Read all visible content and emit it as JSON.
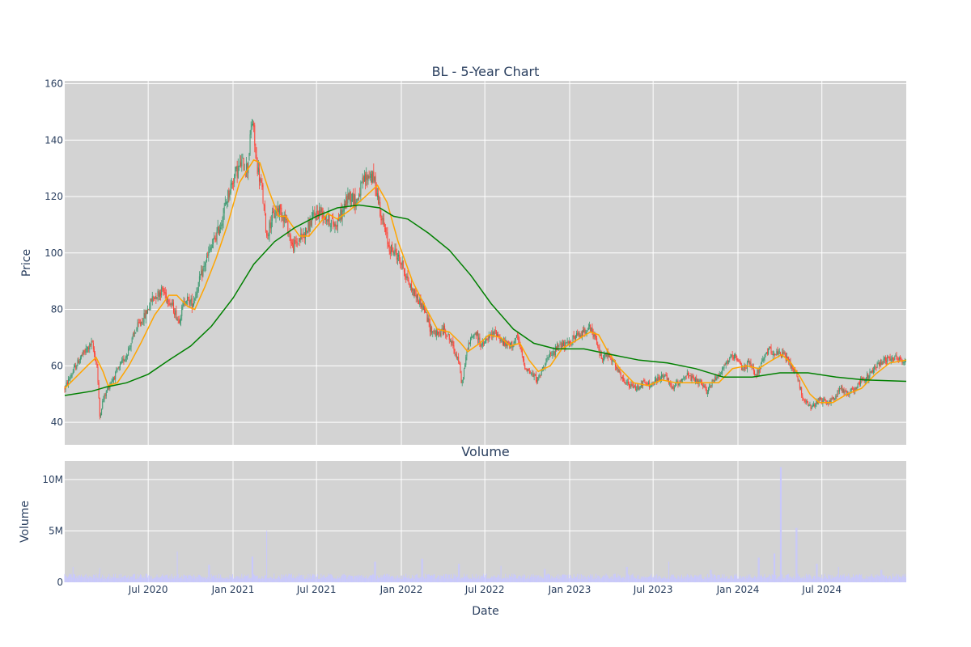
{
  "chart_data": [
    {
      "type": "candlestick",
      "title": "BL - 5-Year Chart",
      "ylabel": "Price",
      "ylim": [
        32,
        161
      ],
      "yticks": [
        40,
        60,
        80,
        100,
        120,
        140,
        160
      ],
      "xlim": [
        "2020-01-02",
        "2024-12-31"
      ],
      "colors": {
        "up": "#3d9970",
        "down": "#ff4136",
        "ma_short": "#ffa500",
        "ma_long": "#008000",
        "background": "#d3d3d3",
        "grid": "#ffffff"
      },
      "series": [
        {
          "name": "",
          "kind": "ohlc"
        },
        {
          "name": "",
          "kind": "moving-average-short"
        },
        {
          "name": "",
          "kind": "moving-average-long"
        }
      ],
      "price_path": [
        [
          "2020-01-02",
          52
        ],
        [
          "2020-01-20",
          58
        ],
        [
          "2020-02-05",
          63
        ],
        [
          "2020-02-20",
          66
        ],
        [
          "2020-03-01",
          68
        ],
        [
          "2020-03-12",
          60
        ],
        [
          "2020-03-18",
          42
        ],
        [
          "2020-03-25",
          48
        ],
        [
          "2020-04-10",
          54
        ],
        [
          "2020-04-25",
          58
        ],
        [
          "2020-05-15",
          64
        ],
        [
          "2020-06-05",
          73
        ],
        [
          "2020-06-25",
          78
        ],
        [
          "2020-07-10",
          84
        ],
        [
          "2020-08-01",
          87
        ],
        [
          "2020-08-20",
          82
        ],
        [
          "2020-09-05",
          76
        ],
        [
          "2020-09-20",
          84
        ],
        [
          "2020-10-05",
          82
        ],
        [
          "2020-10-20",
          90
        ],
        [
          "2020-11-05",
          98
        ],
        [
          "2020-11-20",
          104
        ],
        [
          "2020-12-05",
          110
        ],
        [
          "2020-12-20",
          120
        ],
        [
          "2021-01-05",
          128
        ],
        [
          "2021-01-20",
          132
        ],
        [
          "2021-02-01",
          130
        ],
        [
          "2021-02-12",
          148
        ],
        [
          "2021-02-20",
          133
        ],
        [
          "2021-03-05",
          122
        ],
        [
          "2021-03-15",
          106
        ],
        [
          "2021-03-25",
          112
        ],
        [
          "2021-04-10",
          116
        ],
        [
          "2021-04-25",
          112
        ],
        [
          "2021-05-10",
          102
        ],
        [
          "2021-05-25",
          105
        ],
        [
          "2021-06-10",
          108
        ],
        [
          "2021-06-25",
          113
        ],
        [
          "2021-07-10",
          115
        ],
        [
          "2021-07-25",
          112
        ],
        [
          "2021-08-10",
          110
        ],
        [
          "2021-08-25",
          114
        ],
        [
          "2021-09-10",
          121
        ],
        [
          "2021-09-25",
          118
        ],
        [
          "2021-10-10",
          125
        ],
        [
          "2021-10-25",
          128
        ],
        [
          "2021-11-05",
          125
        ],
        [
          "2021-11-20",
          112
        ],
        [
          "2021-12-05",
          102
        ],
        [
          "2021-12-20",
          100
        ],
        [
          "2022-01-05",
          95
        ],
        [
          "2022-01-20",
          88
        ],
        [
          "2022-02-05",
          84
        ],
        [
          "2022-02-20",
          80
        ],
        [
          "2022-03-05",
          73
        ],
        [
          "2022-03-20",
          71
        ],
        [
          "2022-04-05",
          73
        ],
        [
          "2022-04-20",
          68
        ],
        [
          "2022-05-05",
          62
        ],
        [
          "2022-05-12",
          53
        ],
        [
          "2022-05-25",
          67
        ],
        [
          "2022-06-10",
          72
        ],
        [
          "2022-06-25",
          67
        ],
        [
          "2022-07-10",
          70
        ],
        [
          "2022-07-25",
          72
        ],
        [
          "2022-08-10",
          68
        ],
        [
          "2022-08-25",
          67
        ],
        [
          "2022-09-10",
          70
        ],
        [
          "2022-09-25",
          60
        ],
        [
          "2022-10-10",
          57
        ],
        [
          "2022-10-25",
          55
        ],
        [
          "2022-11-10",
          62
        ],
        [
          "2022-11-25",
          64
        ],
        [
          "2022-12-10",
          68
        ],
        [
          "2022-12-25",
          67
        ],
        [
          "2023-01-10",
          70
        ],
        [
          "2023-01-25",
          71
        ],
        [
          "2023-02-10",
          74
        ],
        [
          "2023-02-25",
          70
        ],
        [
          "2023-03-10",
          63
        ],
        [
          "2023-03-25",
          64
        ],
        [
          "2023-04-10",
          60
        ],
        [
          "2023-04-25",
          55
        ],
        [
          "2023-05-10",
          53
        ],
        [
          "2023-05-25",
          52
        ],
        [
          "2023-06-10",
          54
        ],
        [
          "2023-06-25",
          53
        ],
        [
          "2023-07-10",
          55
        ],
        [
          "2023-07-25",
          57
        ],
        [
          "2023-08-10",
          52
        ],
        [
          "2023-08-25",
          54
        ],
        [
          "2023-09-10",
          57
        ],
        [
          "2023-09-25",
          55
        ],
        [
          "2023-10-10",
          54
        ],
        [
          "2023-10-25",
          51
        ],
        [
          "2023-11-10",
          55
        ],
        [
          "2023-11-25",
          58
        ],
        [
          "2023-12-10",
          62
        ],
        [
          "2023-12-25",
          63
        ],
        [
          "2024-01-10",
          59
        ],
        [
          "2024-01-25",
          61
        ],
        [
          "2024-02-10",
          57
        ],
        [
          "2024-02-25",
          62
        ],
        [
          "2024-03-10",
          66
        ],
        [
          "2024-03-25",
          64
        ],
        [
          "2024-04-10",
          64
        ],
        [
          "2024-04-25",
          60
        ],
        [
          "2024-05-05",
          58
        ],
        [
          "2024-05-15",
          52
        ],
        [
          "2024-05-25",
          47
        ],
        [
          "2024-06-10",
          45
        ],
        [
          "2024-06-25",
          48
        ],
        [
          "2024-07-10",
          47
        ],
        [
          "2024-07-25",
          48
        ],
        [
          "2024-08-10",
          52
        ],
        [
          "2024-08-25",
          50
        ],
        [
          "2024-09-10",
          52
        ],
        [
          "2024-09-25",
          55
        ],
        [
          "2024-10-10",
          56
        ],
        [
          "2024-10-25",
          60
        ],
        [
          "2024-11-10",
          62
        ],
        [
          "2024-11-25",
          63
        ],
        [
          "2024-12-10",
          63
        ],
        [
          "2024-12-31",
          61
        ]
      ],
      "ma_short": [
        [
          "2020-01-02",
          52
        ],
        [
          "2020-02-20",
          60
        ],
        [
          "2020-03-10",
          63
        ],
        [
          "2020-03-25",
          58
        ],
        [
          "2020-04-05",
          53
        ],
        [
          "2020-04-25",
          54
        ],
        [
          "2020-05-20",
          60
        ],
        [
          "2020-06-15",
          68
        ],
        [
          "2020-07-15",
          78
        ],
        [
          "2020-08-15",
          85
        ],
        [
          "2020-09-01",
          85
        ],
        [
          "2020-09-25",
          81
        ],
        [
          "2020-10-10",
          80
        ],
        [
          "2020-11-01",
          88
        ],
        [
          "2020-11-25",
          98
        ],
        [
          "2020-12-20",
          110
        ],
        [
          "2021-01-15",
          125
        ],
        [
          "2021-02-15",
          133
        ],
        [
          "2021-02-28",
          132
        ],
        [
          "2021-03-20",
          122
        ],
        [
          "2021-04-10",
          113
        ],
        [
          "2021-04-25",
          113
        ],
        [
          "2021-05-25",
          106
        ],
        [
          "2021-06-15",
          106
        ],
        [
          "2021-07-10",
          111
        ],
        [
          "2021-07-25",
          114
        ],
        [
          "2021-08-15",
          112
        ],
        [
          "2021-09-10",
          115
        ],
        [
          "2021-10-15",
          120
        ],
        [
          "2021-11-10",
          124
        ],
        [
          "2021-12-01",
          118
        ],
        [
          "2021-12-25",
          104
        ],
        [
          "2022-01-25",
          90
        ],
        [
          "2022-02-25",
          80
        ],
        [
          "2022-03-20",
          73
        ],
        [
          "2022-04-15",
          72
        ],
        [
          "2022-05-10",
          68
        ],
        [
          "2022-05-25",
          65
        ],
        [
          "2022-06-20",
          68
        ],
        [
          "2022-07-10",
          71
        ],
        [
          "2022-08-05",
          70
        ],
        [
          "2022-08-25",
          67
        ],
        [
          "2022-09-15",
          68
        ],
        [
          "2022-10-05",
          62
        ],
        [
          "2022-10-25",
          58
        ],
        [
          "2022-11-20",
          60
        ],
        [
          "2022-12-15",
          66
        ],
        [
          "2023-01-15",
          69
        ],
        [
          "2023-02-15",
          72
        ],
        [
          "2023-03-05",
          71
        ],
        [
          "2023-03-25",
          65
        ],
        [
          "2023-04-20",
          59
        ],
        [
          "2023-05-20",
          54
        ],
        [
          "2023-06-20",
          53
        ],
        [
          "2023-07-20",
          55
        ],
        [
          "2023-08-20",
          54
        ],
        [
          "2023-09-20",
          54
        ],
        [
          "2023-10-20",
          54
        ],
        [
          "2023-11-20",
          54
        ],
        [
          "2023-12-20",
          59
        ],
        [
          "2024-01-20",
          60
        ],
        [
          "2024-02-15",
          59
        ],
        [
          "2024-03-15",
          62
        ],
        [
          "2024-04-05",
          64
        ],
        [
          "2024-04-25",
          61
        ],
        [
          "2024-05-15",
          56
        ],
        [
          "2024-06-05",
          50
        ],
        [
          "2024-06-25",
          47
        ],
        [
          "2024-07-25",
          47
        ],
        [
          "2024-08-25",
          50
        ],
        [
          "2024-09-25",
          52
        ],
        [
          "2024-10-25",
          57
        ],
        [
          "2024-11-25",
          61
        ],
        [
          "2024-12-31",
          62
        ]
      ],
      "ma_long": [
        [
          "2020-01-02",
          49.5
        ],
        [
          "2020-03-01",
          51
        ],
        [
          "2020-04-01",
          52.5
        ],
        [
          "2020-05-15",
          54
        ],
        [
          "2020-07-01",
          57
        ],
        [
          "2020-08-15",
          62
        ],
        [
          "2020-10-01",
          67
        ],
        [
          "2020-11-15",
          74
        ],
        [
          "2021-01-01",
          84
        ],
        [
          "2021-02-15",
          96
        ],
        [
          "2021-04-01",
          104
        ],
        [
          "2021-05-15",
          109
        ],
        [
          "2021-07-01",
          113
        ],
        [
          "2021-08-15",
          116
        ],
        [
          "2021-10-01",
          117
        ],
        [
          "2021-11-15",
          116
        ],
        [
          "2021-12-15",
          113
        ],
        [
          "2022-01-15",
          112
        ],
        [
          "2022-03-01",
          107
        ],
        [
          "2022-04-15",
          101
        ],
        [
          "2022-06-01",
          92
        ],
        [
          "2022-07-15",
          82
        ],
        [
          "2022-09-01",
          73
        ],
        [
          "2022-10-15",
          68
        ],
        [
          "2022-12-01",
          66
        ],
        [
          "2023-02-01",
          66
        ],
        [
          "2023-04-01",
          64
        ],
        [
          "2023-06-01",
          62
        ],
        [
          "2023-08-01",
          61
        ],
        [
          "2023-10-01",
          59
        ],
        [
          "2023-12-01",
          56
        ],
        [
          "2024-02-01",
          56
        ],
        [
          "2024-04-01",
          57.5
        ],
        [
          "2024-06-01",
          57.5
        ],
        [
          "2024-08-01",
          56
        ],
        [
          "2024-10-01",
          55
        ],
        [
          "2024-12-31",
          54.5
        ]
      ]
    },
    {
      "type": "bar",
      "title": "Volume",
      "xlabel": "Date",
      "ylabel": "Volume",
      "ylim": [
        0,
        11800000
      ],
      "yticks": [
        {
          "value": 0,
          "label": "0"
        },
        {
          "value": 5000000,
          "label": "5M"
        },
        {
          "value": 10000000,
          "label": "10M"
        }
      ],
      "xticks": [
        {
          "date": "2020-07-01",
          "label": "Jul 2020"
        },
        {
          "date": "2021-01-01",
          "label": "Jan 2021"
        },
        {
          "date": "2021-07-01",
          "label": "Jul 2021"
        },
        {
          "date": "2022-01-01",
          "label": "Jan 2022"
        },
        {
          "date": "2022-07-01",
          "label": "Jul 2022"
        },
        {
          "date": "2023-01-01",
          "label": "Jan 2023"
        },
        {
          "date": "2023-07-01",
          "label": "Jul 2023"
        },
        {
          "date": "2024-01-01",
          "label": "Jan 2024"
        },
        {
          "date": "2024-07-01",
          "label": "Jul 2024"
        }
      ],
      "colors": {
        "bar": "#c8c8ff",
        "background": "#d3d3d3",
        "grid": "#ffffff"
      },
      "volume_typical": 600000,
      "volume_spikes": [
        [
          "2020-01-20",
          1500000
        ],
        [
          "2020-03-18",
          1400000
        ],
        [
          "2020-09-02",
          3000000
        ],
        [
          "2020-11-10",
          1700000
        ],
        [
          "2021-02-12",
          2500000
        ],
        [
          "2021-03-15",
          5000000
        ],
        [
          "2021-11-05",
          2000000
        ],
        [
          "2022-02-15",
          2300000
        ],
        [
          "2022-05-06",
          1800000
        ],
        [
          "2022-08-05",
          1600000
        ],
        [
          "2022-11-08",
          1300000
        ],
        [
          "2023-05-05",
          1500000
        ],
        [
          "2023-08-04",
          2000000
        ],
        [
          "2023-11-03",
          1200000
        ],
        [
          "2024-02-15",
          2400000
        ],
        [
          "2024-03-20",
          2800000
        ],
        [
          "2024-04-03",
          11200000
        ],
        [
          "2024-05-07",
          5300000
        ],
        [
          "2024-06-20",
          1800000
        ],
        [
          "2024-08-06",
          1500000
        ],
        [
          "2024-11-07",
          1200000
        ]
      ]
    }
  ]
}
